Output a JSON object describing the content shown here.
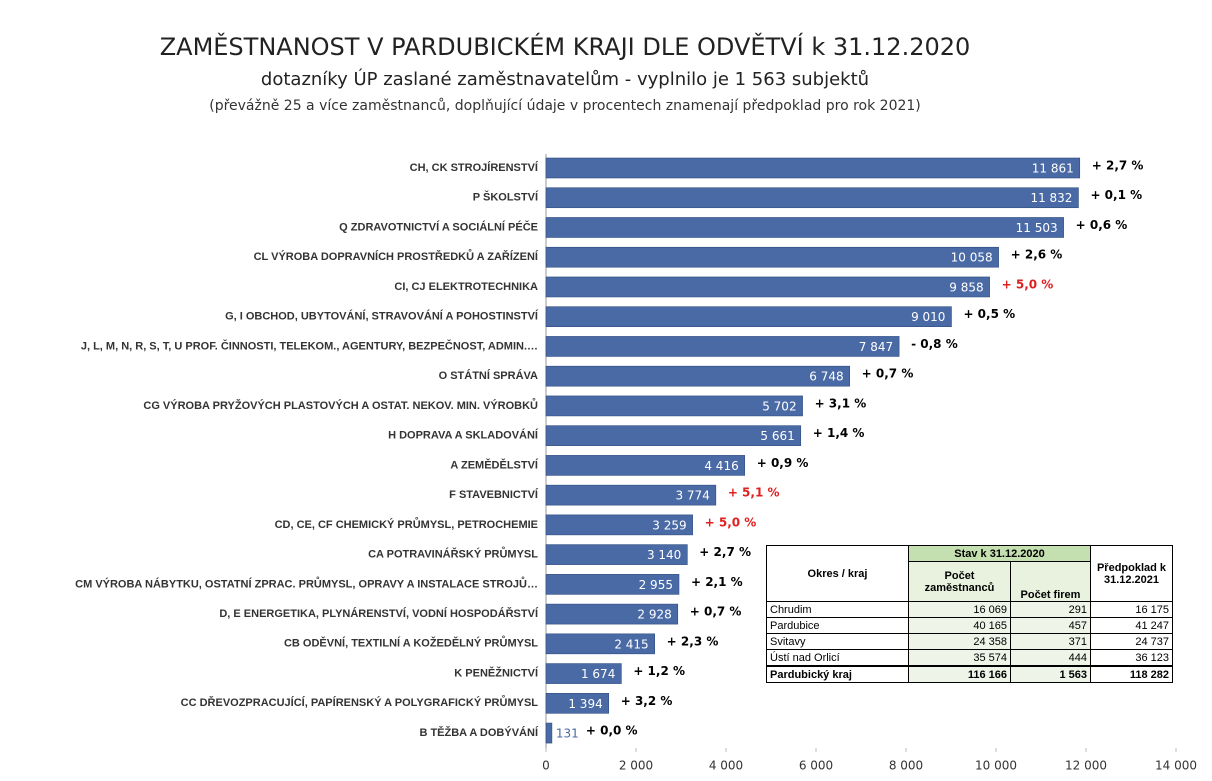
{
  "chart_data": {
    "type": "barh",
    "title": "ZAMĚSTNANOST V PARDUBICKÉM KRAJI DLE ODVĚTVÍ k 31.12.2020",
    "subtitle": "dotazníky ÚP zaslané zaměstnavatelům - vyplnilo je 1 563 subjektů",
    "note": "(převážně 25 a více zaměstnanců, doplňující údaje v procentech znamenají předpoklad pro rok 2021)",
    "color": "#4a6aa6",
    "categories": [
      "CH, CK STROJÍRENSTVÍ",
      "P ŠKOLSTVÍ",
      "Q ZDRAVOTNICTVÍ A SOCIÁLNÍ PÉČE",
      "CL VÝROBA DOPRAVNÍCH PROSTŘEDKŮ A ZAŘÍZENÍ",
      "CI, CJ ELEKTROTECHNIKA",
      "G, I OBCHOD, UBYTOVÁNÍ, STRAVOVÁNÍ A POHOSTINSTVÍ",
      "J, L, M, N, R, S, T, U PROF. ČINNOSTI, TELEKOM., AGENTURY, BEZPEČNOST, ADMIN.…",
      "O STÁTNÍ SPRÁVA",
      "CG VÝROBA PRYŽOVÝCH PLASTOVÝCH A OSTAT. NEKOV. MIN. VÝROBKŮ",
      "H DOPRAVA A SKLADOVÁNÍ",
      "A  ZEMĚDĚLSTVÍ",
      "F STAVEBNICTVÍ",
      "CD, CE, CF CHEMICKÝ PRŮMYSL, PETROCHEMIE",
      "CA POTRAVINÁŘSKÝ PRŮMYSL",
      "CM  VÝROBA NÁBYTKU, OSTATNÍ ZPRAC. PRŮMYSL, OPRAVY A INSTALACE STROJŮ…",
      "D, E ENERGETIKA, PLYNÁRENSTVÍ, VODNÍ HOSPODÁŘSTVÍ",
      "CB ODĚVNÍ, TEXTILNÍ A KOŽEDĚLNÝ PRŮMYSL",
      "K PENĚŽNICTVÍ",
      "CC DŘEVOZPRACUJÍCÍ, PAPÍRENSKÝ A POLYGRAFICKÝ PRŮMYSL",
      "B TĚŽBA A DOBÝVÁNÍ"
    ],
    "values": [
      11861,
      11832,
      11503,
      10058,
      9858,
      9010,
      7847,
      6748,
      5702,
      5661,
      4416,
      3774,
      3259,
      3140,
      2955,
      2928,
      2415,
      1674,
      1394,
      131
    ],
    "value_labels": [
      "11 861",
      "11 832",
      "11 503",
      "10 058",
      "9 858",
      "9 010",
      "7 847",
      "6 748",
      "5 702",
      "5 661",
      "4 416",
      "3 774",
      "3 259",
      "3 140",
      "2 955",
      "2 928",
      "2 415",
      "1 674",
      "1 394",
      "131"
    ],
    "annotations": [
      {
        "text": "+ 2,7 %",
        "color": "#000000"
      },
      {
        "text": "+ 0,1 %",
        "color": "#000000"
      },
      {
        "text": "+ 0,6 %",
        "color": "#000000"
      },
      {
        "text": "+ 2,6 %",
        "color": "#000000"
      },
      {
        "text": "+ 5,0 %",
        "color": "#e02020"
      },
      {
        "text": "+ 0,5 %",
        "color": "#000000"
      },
      {
        "text": "- 0,8 %",
        "color": "#000000"
      },
      {
        "text": "+ 0,7 %",
        "color": "#000000"
      },
      {
        "text": "+ 3,1 %",
        "color": "#000000"
      },
      {
        "text": "+ 1,4 %",
        "color": "#000000"
      },
      {
        "text": "+ 0,9 %",
        "color": "#000000"
      },
      {
        "text": "+ 5,1 %",
        "color": "#e02020"
      },
      {
        "text": "+ 5,0 %",
        "color": "#e02020"
      },
      {
        "text": "+ 2,7 %",
        "color": "#000000"
      },
      {
        "text": "+ 2,1 %",
        "color": "#000000"
      },
      {
        "text": "+ 0,7 %",
        "color": "#000000"
      },
      {
        "text": "+ 2,3 %",
        "color": "#000000"
      },
      {
        "text": "+ 1,2 %",
        "color": "#000000"
      },
      {
        "text": "+ 3,2 %",
        "color": "#000000"
      },
      {
        "text": "+ 0,0 %",
        "color": "#000000"
      }
    ],
    "xlim": [
      0,
      14000
    ],
    "xticks": [
      0,
      {
        "value": 2000,
        "label": "2 000"
      },
      {
        "value": 4000,
        "label": "4 000"
      },
      {
        "value": 6000,
        "label": "6 000"
      },
      {
        "value": 8000,
        "label": "8 000"
      },
      {
        "value": 10000,
        "label": "10 000"
      },
      {
        "value": 12000,
        "label": "12 000"
      },
      {
        "value": 14000,
        "label": "14 000"
      }
    ]
  },
  "table": {
    "header": {
      "region": "Okres / kraj",
      "status": "Stav k 31.12.2020",
      "employees": "Počet zaměstnanců",
      "firms": "Počet firem",
      "forecast": "Předpoklad k 31.12.2021"
    },
    "rows": [
      [
        "Chrudim",
        "16 069",
        "291",
        "16 175"
      ],
      [
        "Pardubice",
        "40 165",
        "457",
        "41 247"
      ],
      [
        "Svitavy",
        "24 358",
        "371",
        "24 737"
      ],
      [
        "Ústí nad Orlicí",
        "35 574",
        "444",
        "36 123"
      ]
    ],
    "total": [
      "Pardubický kraj",
      "116 166",
      "1 563",
      "118 282"
    ]
  }
}
